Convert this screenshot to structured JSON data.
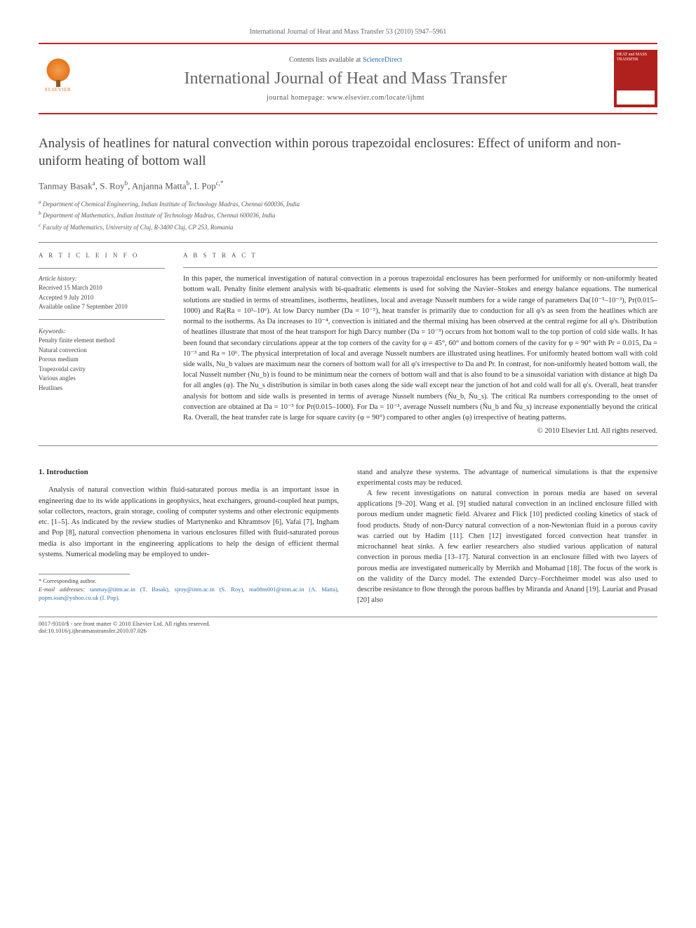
{
  "citation": "International Journal of Heat and Mass Transfer 53 (2010) 5947–5961",
  "header": {
    "contents_prefix": "Contents lists available at ",
    "contents_link": "ScienceDirect",
    "journal_title": "International Journal of Heat and Mass Transfer",
    "homepage_prefix": "journal homepage: ",
    "homepage_url": "www.elsevier.com/locate/ijhmt",
    "publisher_label": "ELSEVIER",
    "cover_text": "HEAT and MASS TRANSFER"
  },
  "title": "Analysis of heatlines for natural convection within porous trapezoidal enclosures: Effect of uniform and non-uniform heating of bottom wall",
  "authors_html": "Tanmay Basak<sup>a</sup>, S. Roy<sup>b</sup>, Anjanna Matta<sup>b</sup>, I. Pop<sup>c,*</sup>",
  "affiliations": [
    "a Department of Chemical Engineering, Indian Institute of Technology Madras, Chennai 600036, India",
    "b Department of Mathematics, Indian Institute of Technology Madras, Chennai 600036, India",
    "c Faculty of Mathematics, University of Cluj, R-3400 Cluj, CP 253, Romania"
  ],
  "article_info": {
    "heading": "A R T I C L E   I N F O",
    "history_label": "Article history:",
    "history": [
      "Received 15 March 2010",
      "Accepted 9 July 2010",
      "Available online 7 September 2010"
    ],
    "keywords_label": "Keywords:",
    "keywords": [
      "Penalty finite element method",
      "Natural convection",
      "Porous medium",
      "Trapezoidal cavity",
      "Various angles",
      "Heatlines"
    ]
  },
  "abstract": {
    "heading": "A B S T R A C T",
    "text": "In this paper, the numerical investigation of natural convection in a porous trapezoidal enclosures has been performed for uniformly or non-uniformly heated bottom wall. Penalty finite element analysis with bi-quadratic elements is used for solving the Navier–Stokes and energy balance equations. The numerical solutions are studied in terms of streamlines, isotherms, heatlines, local and average Nusselt numbers for a wide range of parameters Da(10⁻⁵–10⁻³), Pr(0.015–1000) and Ra(Ra = 10³–10⁶). At low Darcy number (Da = 10⁻⁵), heat transfer is primarily due to conduction for all φ's as seen from the heatlines which are normal to the isotherms. As Da increases to 10⁻⁴, convection is initiated and the thermal mixing has been observed at the central regime for all φ's. Distribution of heatlines illustrate that most of the heat transport for high Darcy number (Da = 10⁻³) occurs from hot bottom wall to the top portion of cold side walls. It has been found that secondary circulations appear at the top corners of the cavity for φ = 45°, 60° and bottom corners of the cavity for φ = 90° with Pr = 0.015, Da = 10⁻³ and Ra = 10⁶. The physical interpretation of local and average Nusselt numbers are illustrated using heatlines. For uniformly heated bottom wall with cold side walls, Nu_b values are maximum near the corners of bottom wall for all φ's irrespective to Da and Pr. In contrast, for non-uniformly heated bottom wall, the local Nusselt number (Nu_b) is found to be minimum near the corners of bottom wall and that is also found to be a sinusoidal variation with distance at high Da for all angles (φ). The Nu_s distribution is similar in both cases along the side wall except near the junction of hot and cold wall for all φ's. Overall, heat transfer analysis for bottom and side walls is presented in terms of average Nusselt numbers (N̄u_b, N̄u_s). The critical Ra numbers corresponding to the onset of convection are obtained at Da = 10⁻³ for Pr(0.015–1000). For Da = 10⁻³, average Nusselt numbers (N̄u_b and N̄u_s) increase exponentially beyond the critical Ra. Overall, the heat transfer rate is large for square cavity (φ = 90°) compared to other angles (φ) irrespective of heating patterns.",
    "copyright": "© 2010 Elsevier Ltd. All rights reserved."
  },
  "intro": {
    "heading": "1. Introduction",
    "para1": "Analysis of natural convection within fluid-saturated porous media is an important issue in engineering due to its wide applications in geophysics, heat exchangers, ground-coupled heat pumps, solar collectors, reactors, grain storage, cooling of computer systems and other electronic equipments etc. [1–5]. As indicated by the review studies of Martynenko and Khramtsov [6], Vafai [7], Ingham and Pop [8], natural convection phenomena in various enclosures filled with fluid-saturated porous media is also important in the engineering applications to help the design of efficient thermal systems. Numerical modeling may be employed to under-",
    "para2a": "stand and analyze these systems. The advantage of numerical simulations is that the expensive experimental costs may be reduced.",
    "para2b": "A few recent investigations on natural convection in porous media are based on several applications [9–20]. Wang et al. [9] studied natural convection in an inclined enclosure filled with porous medium under magnetic field. Alvarez and Flick [10] predicted cooling kinetics of stack of food products. Study of non-Darcy natural convection of a non-Newtonian fluid in a porous cavity was carried out by Hadim [11]. Chen [12] investigated forced convection heat transfer in microchannel heat sinks. A few earlier researchers also studied various application of natural convection in porous media [13–17]. Natural convection in an enclosure filled with two layers of porous media are investigated numerically by Merrikh and Mohamad [18]. The focus of the work is on the validity of the Darcy model. The extended Darcy–Forchheimer model was also used to describe resistance to flow through the porous baffles by Miranda and Anand [19]. Lauriat and Prasad [20] also"
  },
  "footnotes": {
    "corresponding": "* Corresponding author.",
    "emails_label": "E-mail addresses:",
    "emails": "tanmay@iitm.ac.in (T. Basak), sjroy@iitm.ac.in (S. Roy), ma08m001@iitm.ac.in (A. Matta), popm.ioan@yahoo.co.uk (I. Pop).",
    "issn_line": "0017-9310/$ - see front matter © 2010 Elsevier Ltd. All rights reserved.",
    "doi": "doi:10.1016/j.ijheatmasstransfer.2010.07.026"
  },
  "colors": {
    "rule": "#cb2027",
    "link": "#2a6fa8",
    "elsevier": "#e8751a",
    "cover": "#b0201c"
  }
}
